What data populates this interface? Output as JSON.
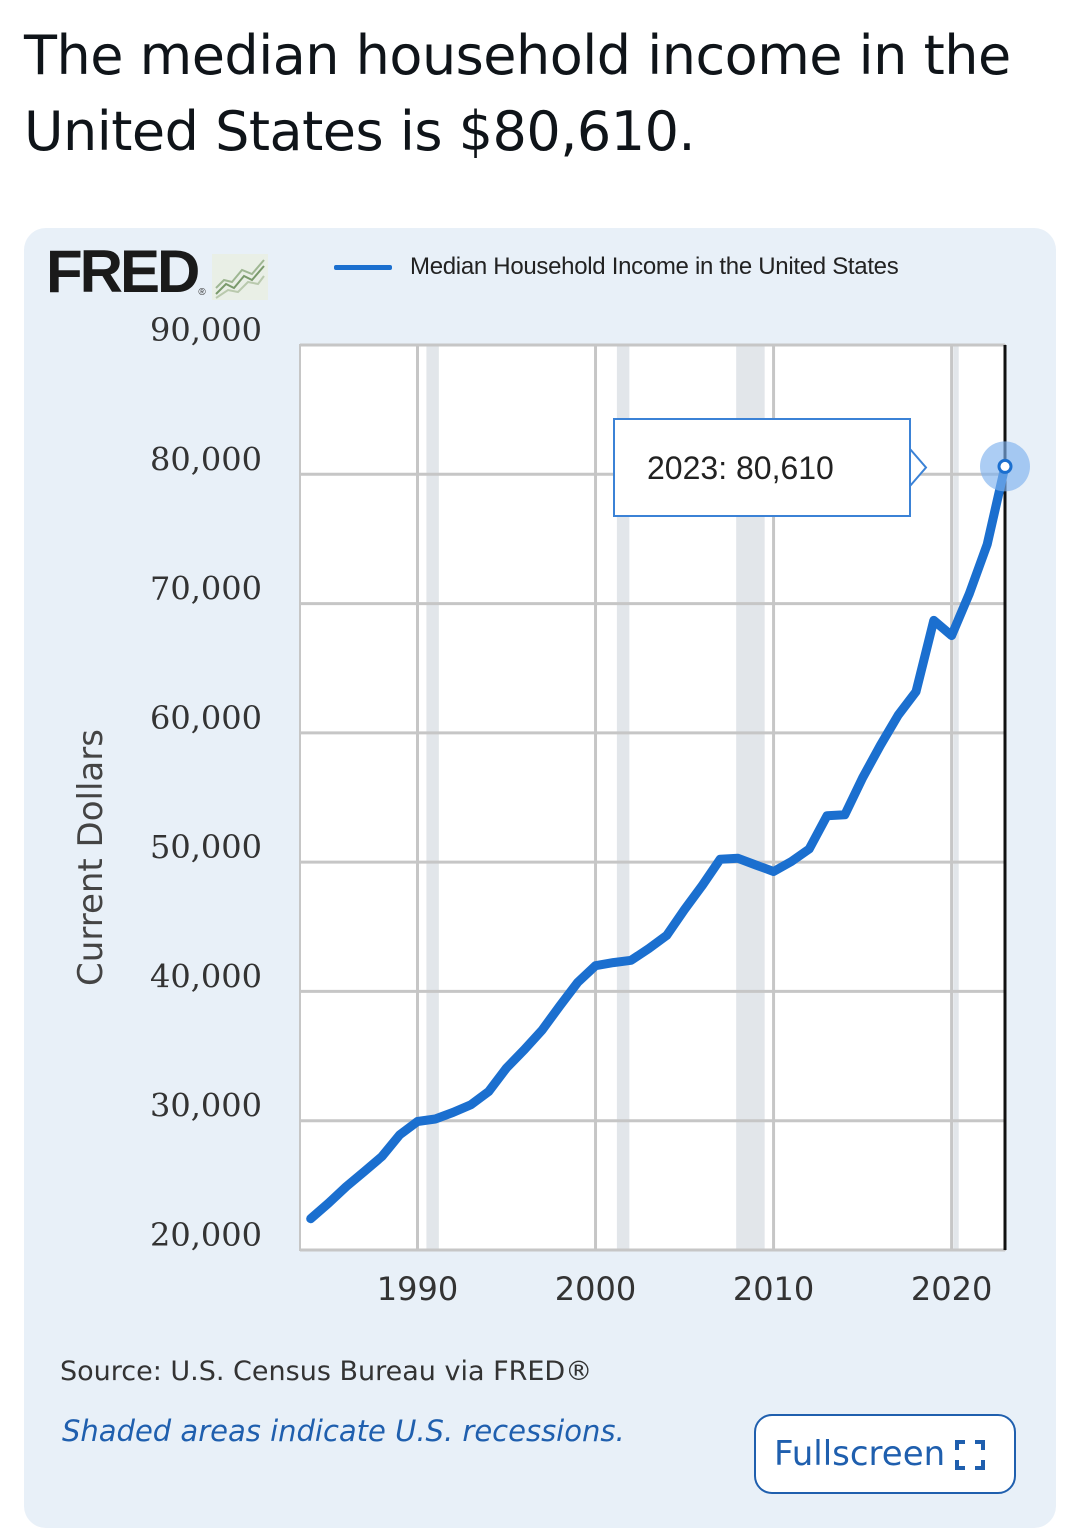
{
  "headline": "The median household income in the United States is $80,610.",
  "brand": {
    "logo_text": "FRED",
    "registered_mark": "®"
  },
  "chart_data": {
    "type": "line",
    "title": "",
    "legend": [
      "Median Household Income in the United States"
    ],
    "ylabel": "Current Dollars",
    "xlabel": "",
    "xlim": [
      1984,
      2023
    ],
    "ylim": [
      20000,
      90000
    ],
    "y_ticks": [
      20000,
      30000,
      40000,
      50000,
      60000,
      70000,
      80000,
      90000
    ],
    "y_tick_labels": [
      "20,000",
      "30,000",
      "40,000",
      "50,000",
      "60,000",
      "70,000",
      "80,000",
      "90,000"
    ],
    "x_ticks": [
      1990,
      2000,
      2010,
      2020
    ],
    "x_tick_labels": [
      "1990",
      "2000",
      "2010",
      "2020"
    ],
    "grid": true,
    "recessions": [
      [
        1990.5,
        1991.2
      ],
      [
        2001.2,
        2001.9
      ],
      [
        2007.9,
        2009.5
      ],
      [
        2020.1,
        2020.4
      ]
    ],
    "series": [
      {
        "name": "Median Household Income in the United States",
        "color": "#1b6fcf",
        "x": [
          1984,
          1985,
          1986,
          1987,
          1988,
          1989,
          1990,
          1991,
          1992,
          1993,
          1994,
          1995,
          1996,
          1997,
          1998,
          1999,
          2000,
          2001,
          2002,
          2003,
          2004,
          2005,
          2006,
          2007,
          2008,
          2009,
          2010,
          2011,
          2012,
          2013,
          2014,
          2015,
          2016,
          2017,
          2018,
          2019,
          2020,
          2021,
          2022,
          2023
        ],
        "values": [
          22420,
          23620,
          24900,
          26060,
          27230,
          28910,
          29940,
          30130,
          30640,
          31240,
          32260,
          34080,
          35490,
          37010,
          38890,
          40700,
          41990,
          42230,
          42410,
          43320,
          44330,
          46330,
          48200,
          50230,
          50300,
          49780,
          49280,
          50050,
          51020,
          53590,
          53660,
          56520,
          59040,
          61370,
          63180,
          68700,
          67520,
          70780,
          74580,
          80610
        ]
      }
    ],
    "tooltip": {
      "label": "2023:",
      "value": "80,610"
    }
  },
  "footer": {
    "source": "Source: U.S. Census Bureau via FRED®",
    "note": "Shaded areas indicate U.S. recessions.",
    "fullscreen_label": "Fullscreen"
  }
}
